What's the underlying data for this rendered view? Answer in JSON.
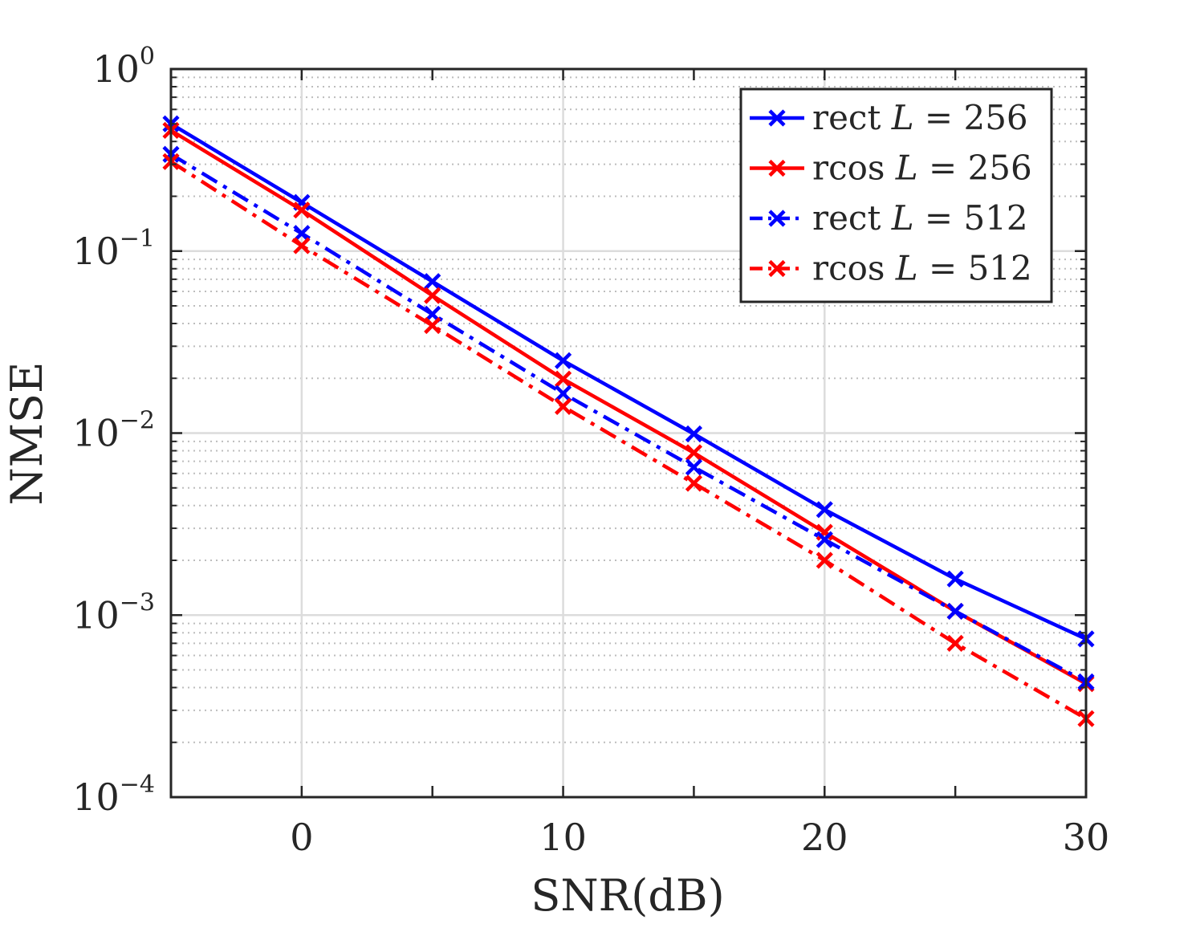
{
  "chart_data": {
    "type": "line",
    "title": "",
    "xlabel": "SNR(dB)",
    "ylabel": "NMSE",
    "yscale": "log",
    "xlim": [
      -5,
      30
    ],
    "ylim": [
      0.0001,
      1
    ],
    "grid": true,
    "legend_position": "top-right",
    "x": [
      -5,
      0,
      5,
      10,
      15,
      20,
      25,
      30
    ],
    "xticks": [
      {
        "value": 0,
        "label": "0"
      },
      {
        "value": 10,
        "label": "10"
      },
      {
        "value": 20,
        "label": "20"
      },
      {
        "value": 30,
        "label": "30"
      }
    ],
    "yticks": [
      {
        "value": 1,
        "base": "10",
        "exp": "0"
      },
      {
        "value": 0.1,
        "base": "10",
        "exp": "−1"
      },
      {
        "value": 0.01,
        "base": "10",
        "exp": "−2"
      },
      {
        "value": 0.001,
        "base": "10",
        "exp": "−3"
      },
      {
        "value": 0.0001,
        "base": "10",
        "exp": "−4"
      }
    ],
    "series": [
      {
        "name": "rect L = 256",
        "label_prefix": "rect ",
        "label_var": "L",
        "label_rest": " = 256",
        "color": "#0000ff",
        "style": "solid",
        "marker": "x",
        "values": [
          0.5,
          0.185,
          0.068,
          0.025,
          0.0099,
          0.0038,
          0.00158,
          0.00074
        ]
      },
      {
        "name": "rcos L = 256",
        "label_prefix": "rcos ",
        "label_var": "L",
        "label_rest": " = 256",
        "color": "#ff0000",
        "style": "solid",
        "marker": "x",
        "values": [
          0.46,
          0.168,
          0.057,
          0.0198,
          0.0078,
          0.00285,
          0.00105,
          0.00042
        ]
      },
      {
        "name": "rect L = 512",
        "label_prefix": "rect ",
        "label_var": "L",
        "label_rest": " = 512",
        "color": "#0000ff",
        "style": "dashdot",
        "marker": "x",
        "values": [
          0.34,
          0.125,
          0.045,
          0.0165,
          0.0065,
          0.0026,
          0.00105,
          0.00043
        ]
      },
      {
        "name": "rcos L = 512",
        "label_prefix": "rcos ",
        "label_var": "L",
        "label_rest": " = 512",
        "color": "#ff0000",
        "style": "dashdot",
        "marker": "x",
        "values": [
          0.31,
          0.107,
          0.039,
          0.014,
          0.0053,
          0.002,
          0.0007,
          0.00027
        ]
      }
    ]
  }
}
